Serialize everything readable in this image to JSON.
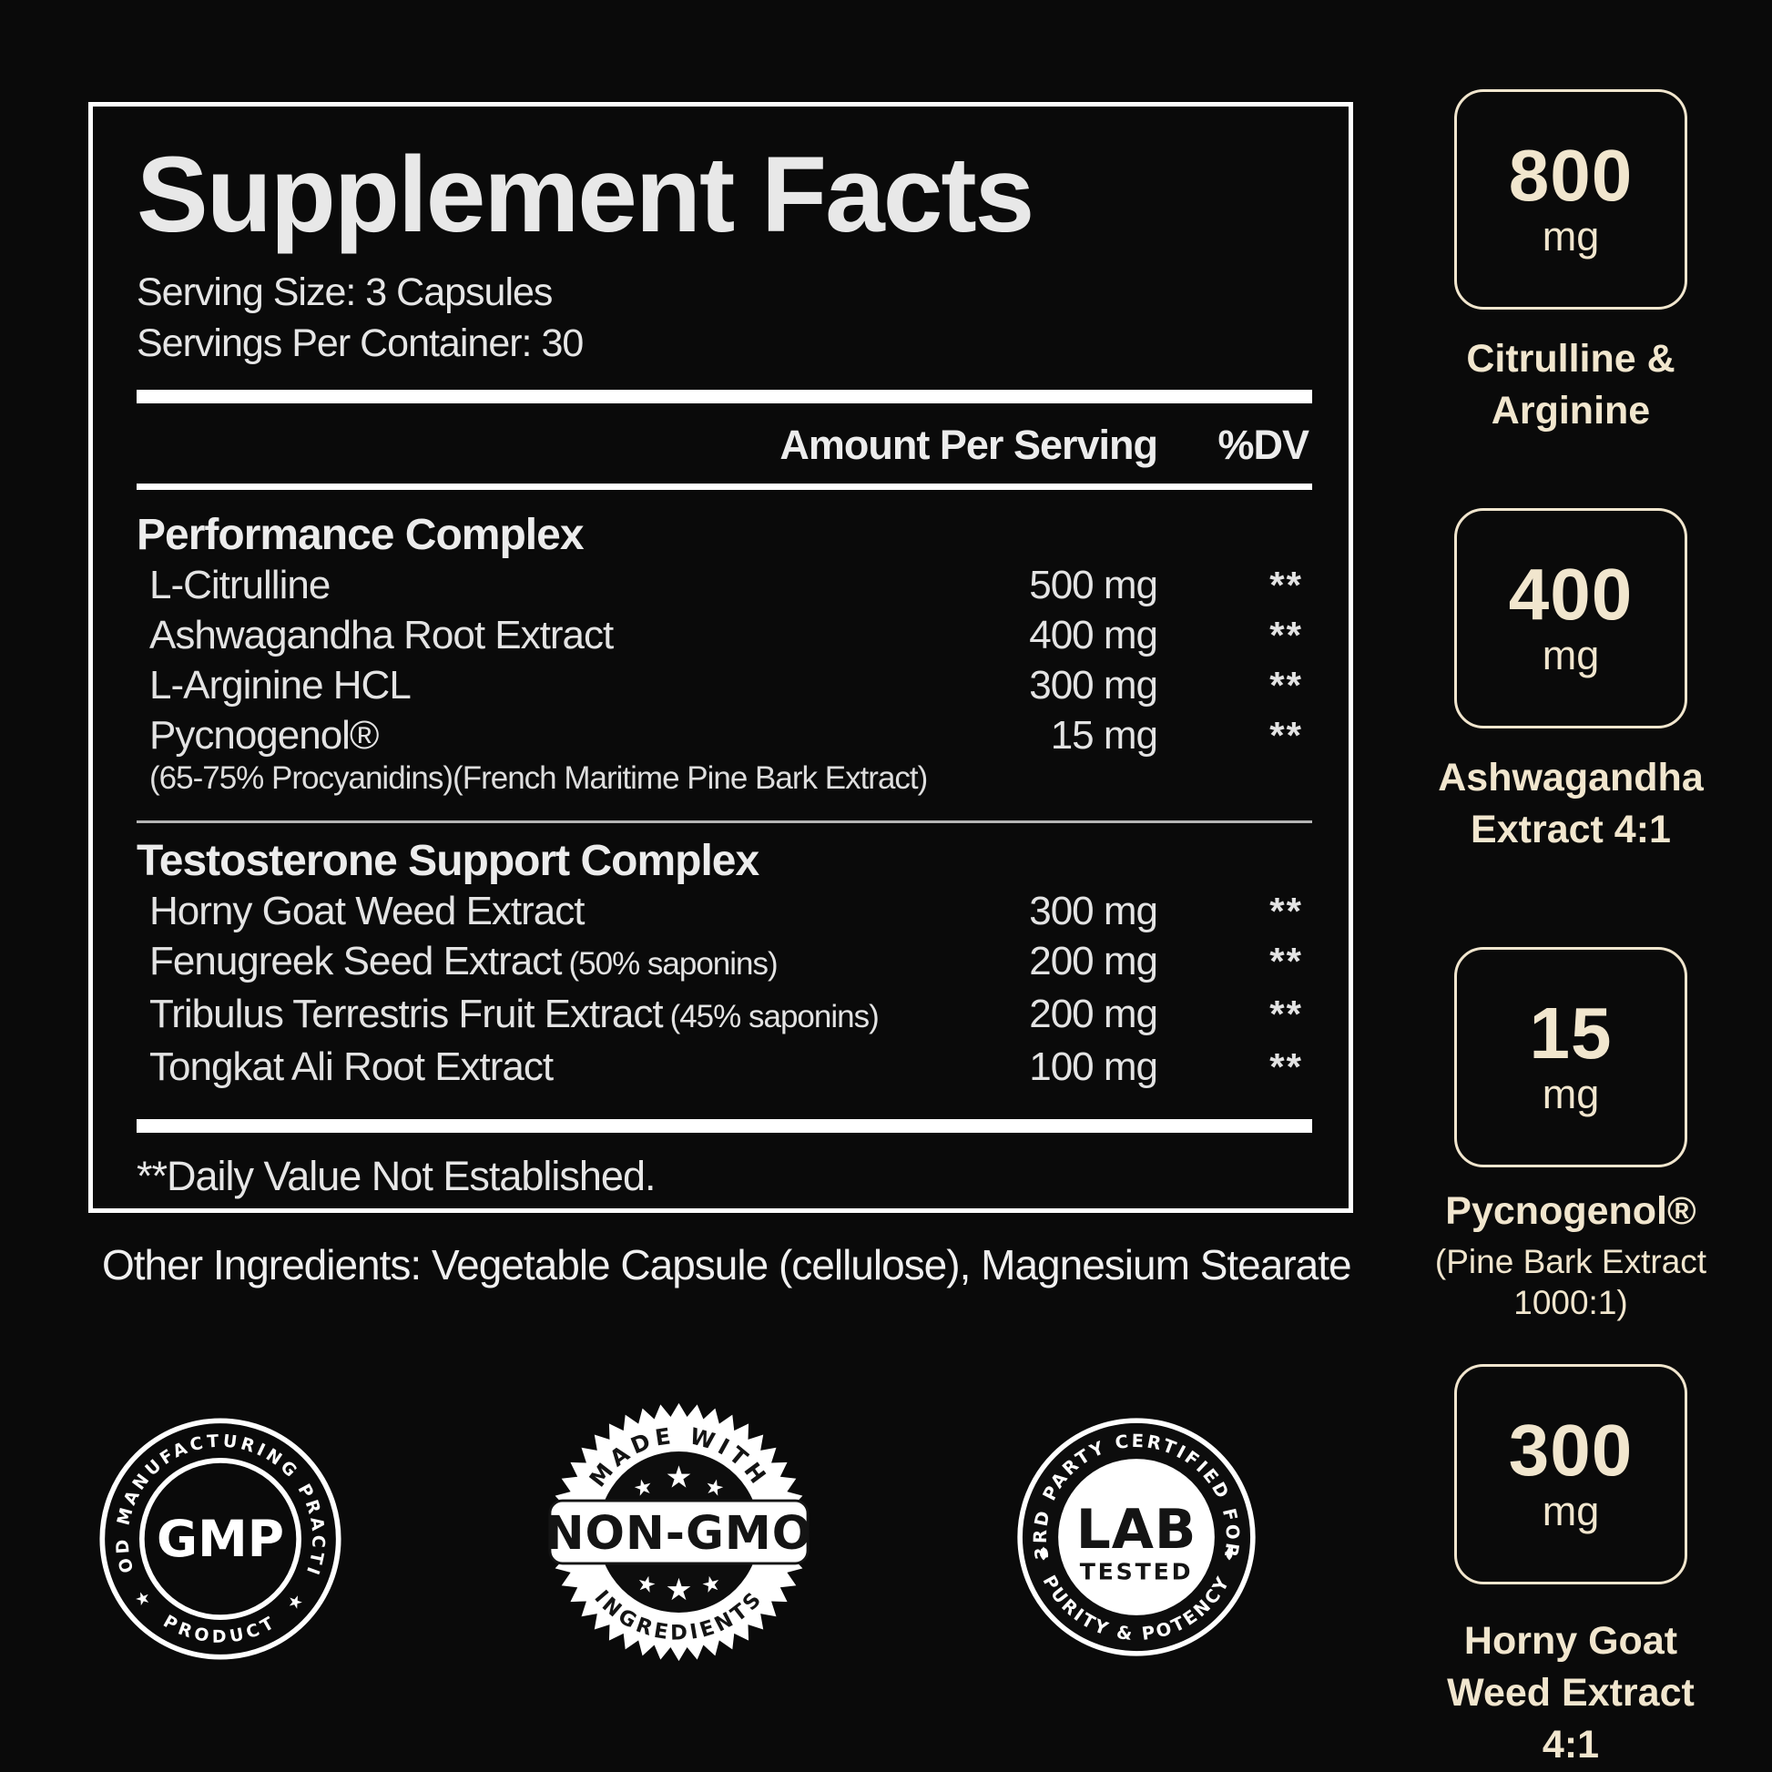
{
  "panel": {
    "title": "Supplement Facts",
    "serving_size": "Serving Size: 3 Capsules",
    "servings_per_container": "Servings Per Container: 30",
    "amount_header": "Amount Per Serving",
    "dv_header": "%DV",
    "sections": [
      {
        "title": "Performance Complex",
        "rows": [
          {
            "name": "L-Citrulline",
            "amount": "500 mg",
            "dv": "**"
          },
          {
            "name": "Ashwagandha Root Extract",
            "amount": "400 mg",
            "dv": "**"
          },
          {
            "name": "L-Arginine HCL",
            "amount": "300 mg",
            "dv": "**"
          },
          {
            "name": "Pycnogenol®",
            "amount": "15 mg",
            "dv": "**"
          }
        ],
        "note": "(65-75% Procyanidins)(French Maritime Pine Bark Extract)"
      },
      {
        "title": "Testosterone Support Complex",
        "rows": [
          {
            "name": "Horny Goat Weed Extract",
            "detail": "",
            "amount": "300 mg",
            "dv": "**"
          },
          {
            "name": "Fenugreek Seed Extract",
            "detail": "(50% saponins)",
            "amount": "200 mg",
            "dv": "**"
          },
          {
            "name": "Tribulus Terrestris Fruit Extract",
            "detail": "(45% saponins)",
            "amount": "200 mg",
            "dv": "**"
          },
          {
            "name": "Tongkat Ali Root Extract",
            "detail": "",
            "amount": "100 mg",
            "dv": "**"
          }
        ]
      }
    ],
    "footnote": "**Daily Value Not Established."
  },
  "other_ingredients": "Other Ingredients: Vegetable Capsule (cellulose), Magnesium Stearate",
  "highlights": [
    {
      "value": "800",
      "unit": "mg",
      "label_lines": [
        "Citrulline &",
        "Arginine"
      ]
    },
    {
      "value": "400",
      "unit": "mg",
      "label_lines": [
        "Ashwagandha",
        "Extract 4:1"
      ]
    },
    {
      "value": "15",
      "unit": "mg",
      "label_lines": [
        "Pycnogenol®"
      ],
      "sub_lines": [
        "(Pine Bark Extract",
        "1000:1)"
      ]
    },
    {
      "value": "300",
      "unit": "mg",
      "label_lines": [
        "Horny Goat",
        "Weed Extract 4:1"
      ]
    }
  ],
  "badges": {
    "gmp": {
      "arc_top": "GOOD MANUFACTURING PRACTICE",
      "center": "GMP",
      "arc_bottom": "★  PRODUCT  ★"
    },
    "non_gmo": {
      "arc_top": "MADE WITH",
      "banner": "NON-GMO",
      "arc_bottom": "INGREDIENTS"
    },
    "lab": {
      "arc_top": "3RD PARTY CERTIFIED FOR",
      "center_line1": "LAB",
      "center_line2": "TESTED",
      "arc_bottom": "PURITY & POTENCY"
    }
  },
  "colors": {
    "cream": "#f1e6ce",
    "text": "#e6e6e6",
    "white": "#ffffff",
    "background": "#0a0a0a"
  }
}
